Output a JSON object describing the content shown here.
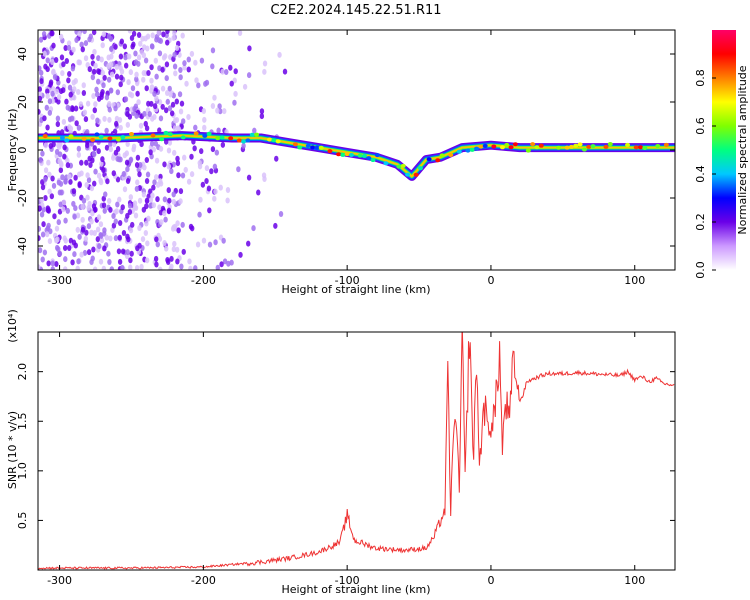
{
  "figure": {
    "title": "C2E2.2024.145.22.51.R11"
  },
  "chart_data": [
    {
      "type": "heatmap",
      "title": "C2E2.2024.145.22.51.R11",
      "xlabel": "Height of straight line (km)",
      "ylabel": "Frequency (Hz)",
      "xlim": [
        -315,
        128
      ],
      "ylim": [
        -50,
        50
      ],
      "x_ticks": [
        -300,
        -200,
        -100,
        0,
        100
      ],
      "y_ticks": [
        -40,
        -20,
        0,
        20,
        40
      ],
      "colorbar": {
        "label": "Normalized spectral amplitude",
        "range": [
          0.0,
          1.0
        ],
        "ticks": [
          0.0,
          0.2,
          0.4,
          0.6,
          0.8
        ],
        "colormap": [
          "#ffffff",
          "#cc99ff",
          "#6a00e8",
          "#0000ff",
          "#00c8ff",
          "#00ff80",
          "#80ff00",
          "#ffff00",
          "#ff8000",
          "#ff0000",
          "#ff0066"
        ]
      },
      "features": {
        "noise_region_x": [
          -315,
          -180
        ],
        "trace_points": [
          {
            "x": -315,
            "y": 5
          },
          {
            "x": -260,
            "y": 5
          },
          {
            "x": -215,
            "y": 6
          },
          {
            "x": -180,
            "y": 5
          },
          {
            "x": -160,
            "y": 5
          },
          {
            "x": -140,
            "y": 3
          },
          {
            "x": -120,
            "y": 1
          },
          {
            "x": -100,
            "y": -1
          },
          {
            "x": -80,
            "y": -3
          },
          {
            "x": -65,
            "y": -6
          },
          {
            "x": -55,
            "y": -11
          },
          {
            "x": -45,
            "y": -4
          },
          {
            "x": -35,
            "y": -3
          },
          {
            "x": -20,
            "y": 1
          },
          {
            "x": 0,
            "y": 2
          },
          {
            "x": 20,
            "y": 1
          },
          {
            "x": 60,
            "y": 1
          },
          {
            "x": 100,
            "y": 1
          },
          {
            "x": 128,
            "y": 1
          }
        ]
      }
    },
    {
      "type": "line",
      "xlabel": "Height of straight line (km)",
      "ylabel": "SNR (10 * v/v)",
      "y_multiplier": "(x10⁴)",
      "xlim": [
        -315,
        128
      ],
      "ylim": [
        0.0,
        2.4
      ],
      "x_ticks": [
        -300,
        -200,
        -100,
        0,
        100
      ],
      "y_ticks": [
        0.5,
        1.0,
        1.5,
        2.0
      ],
      "line_color": "#ee3333",
      "series": [
        {
          "x": [
            -315,
            -250,
            -200,
            -160,
            -140,
            -120,
            -105,
            -100,
            -95,
            -80,
            -60,
            -45,
            -40,
            -35,
            -32,
            -30,
            -28,
            -25,
            -22,
            -20,
            -18,
            -15,
            -12,
            -10,
            -8,
            -5,
            -2,
            0,
            3,
            6,
            8,
            10,
            13,
            16,
            19,
            22,
            25,
            30,
            35,
            40,
            50,
            60,
            70,
            80,
            90,
            95,
            100,
            105,
            110,
            115,
            120,
            128
          ],
          "y": [
            0.02,
            0.02,
            0.03,
            0.08,
            0.12,
            0.18,
            0.28,
            0.55,
            0.3,
            0.22,
            0.2,
            0.22,
            0.32,
            0.5,
            0.6,
            1.95,
            0.6,
            1.7,
            0.8,
            2.4,
            0.9,
            2.4,
            1.1,
            2.2,
            1.0,
            1.7,
            1.4,
            1.5,
            1.6,
            2.2,
            1.2,
            1.7,
            1.5,
            2.2,
            1.7,
            1.75,
            1.9,
            1.93,
            1.96,
            1.98,
            1.98,
            1.99,
            1.98,
            1.97,
            1.96,
            2.0,
            1.92,
            1.95,
            1.9,
            1.93,
            1.88,
            1.86
          ]
        }
      ]
    }
  ]
}
